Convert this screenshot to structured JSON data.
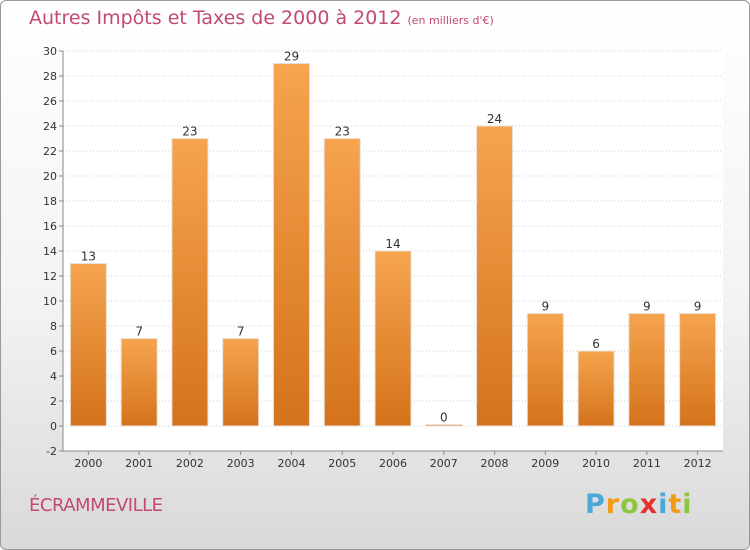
{
  "chart_data": {
    "type": "bar",
    "title": "Autres Impôts et Taxes de 2000 à 2012",
    "subtitle": "(en milliers d'€)",
    "categories": [
      "2000",
      "2001",
      "2002",
      "2003",
      "2004",
      "2005",
      "2006",
      "2007",
      "2008",
      "2009",
      "2010",
      "2011",
      "2012"
    ],
    "values": [
      13,
      7,
      23,
      7,
      29,
      23,
      14,
      0,
      24,
      9,
      6,
      9,
      9
    ],
    "ylim": [
      -2,
      30
    ],
    "yticks": [
      -2,
      0,
      2,
      4,
      6,
      8,
      10,
      12,
      14,
      16,
      18,
      20,
      22,
      24,
      26,
      28,
      30
    ],
    "grid": true,
    "bar_color_light": "#f6a44e",
    "bar_color_dark": "#d4731c"
  },
  "footer": {
    "commune": "ÉCRAMMEVILLE",
    "logo": [
      "P",
      "r",
      "o",
      "x",
      "i",
      "t",
      "i"
    ],
    "logo_colors": [
      "#4aa9d8",
      "#f29a16",
      "#8cc63e",
      "#e5312c",
      "#4aa9d8",
      "#f29a16",
      "#8cc63e"
    ]
  }
}
